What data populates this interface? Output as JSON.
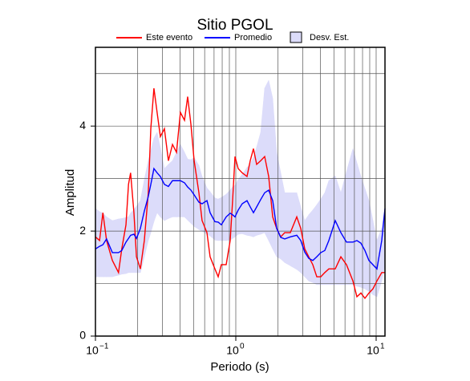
{
  "chart_data": {
    "type": "line",
    "title": "Sitio PGOL",
    "xlabel": "Periodo (s)",
    "ylabel": "Amplitud",
    "xscale": "log",
    "xlim": [
      0.1,
      11.56
    ],
    "ylim": [
      0,
      5.5
    ],
    "xticks": [
      {
        "value": 0.1,
        "label": "10",
        "exponent": "−1"
      },
      {
        "value": 1,
        "label": "10",
        "exponent": "0"
      },
      {
        "value": 10,
        "label": "10",
        "exponent": "1"
      }
    ],
    "yticks": [
      0,
      2,
      4
    ],
    "xminor": [
      0.2,
      0.3,
      0.4,
      0.5,
      0.6,
      0.7,
      0.8,
      0.9,
      2,
      3,
      4,
      5,
      6,
      7,
      8,
      9
    ],
    "yminor": [
      1,
      3,
      5
    ],
    "grid": true,
    "legend": "top",
    "x": [
      0.1,
      0.107,
      0.113,
      0.12,
      0.132,
      0.146,
      0.154,
      0.165,
      0.172,
      0.178,
      0.188,
      0.196,
      0.209,
      0.223,
      0.238,
      0.248,
      0.261,
      0.275,
      0.29,
      0.31,
      0.331,
      0.354,
      0.378,
      0.403,
      0.431,
      0.454,
      0.479,
      0.505,
      0.546,
      0.575,
      0.623,
      0.656,
      0.71,
      0.749,
      0.789,
      0.854,
      0.912,
      0.949,
      0.987,
      1.04,
      1.111,
      1.202,
      1.267,
      1.336,
      1.408,
      1.504,
      1.606,
      1.715,
      1.832,
      1.956,
      2.089,
      2.232,
      2.447,
      2.719,
      2.903,
      3.1,
      3.311,
      3.537,
      3.777,
      4.034,
      4.308,
      4.602,
      5.112,
      5.606,
      6.147,
      6.829,
      7.294,
      7.788,
      8.318,
      8.884,
      9.487,
      10.13,
      10.96,
      11.56
    ],
    "series": [
      {
        "name": "Este evento",
        "color": "#ff0000",
        "values": [
          1.89,
          1.82,
          2.35,
          1.82,
          1.44,
          1.21,
          1.66,
          2.12,
          2.89,
          3.11,
          2.35,
          1.51,
          1.28,
          1.82,
          2.73,
          3.95,
          4.72,
          4.26,
          3.8,
          3.95,
          3.34,
          3.65,
          3.5,
          4.26,
          4.11,
          4.56,
          4.03,
          3.34,
          2.73,
          2.2,
          1.97,
          1.51,
          1.28,
          1.13,
          1.36,
          1.36,
          1.82,
          2.58,
          3.42,
          3.19,
          3.11,
          3.04,
          3.34,
          3.57,
          3.27,
          3.34,
          3.42,
          3.04,
          2.27,
          2.05,
          1.89,
          1.97,
          1.97,
          2.27,
          2.05,
          1.66,
          1.51,
          1.36,
          1.13,
          1.13,
          1.21,
          1.28,
          1.28,
          1.51,
          1.36,
          1.05,
          0.75,
          0.82,
          0.72,
          0.82,
          0.9,
          1.05,
          1.21,
          1.21
        ]
      },
      {
        "name": "Promedio",
        "color": "#0000ff",
        "values": [
          1.66,
          1.71,
          1.74,
          1.85,
          1.59,
          1.59,
          1.63,
          1.79,
          1.86,
          1.92,
          1.94,
          1.86,
          2.05,
          2.38,
          2.66,
          2.89,
          3.19,
          3.11,
          3.04,
          2.89,
          2.85,
          2.96,
          2.96,
          2.96,
          2.92,
          2.84,
          2.78,
          2.69,
          2.55,
          2.52,
          2.58,
          2.35,
          2.18,
          2.17,
          2.12,
          2.27,
          2.34,
          2.31,
          2.27,
          2.4,
          2.52,
          2.58,
          2.46,
          2.35,
          2.46,
          2.6,
          2.73,
          2.78,
          2.58,
          2.05,
          1.88,
          1.85,
          1.89,
          1.92,
          1.82,
          1.6,
          1.48,
          1.44,
          1.51,
          1.59,
          1.63,
          1.82,
          2.2,
          1.97,
          1.79,
          1.79,
          1.82,
          1.77,
          1.63,
          1.44,
          1.36,
          1.28,
          1.82,
          2.43
        ]
      }
    ],
    "band": {
      "name": "Desv. Est.",
      "color": "#dcdcfa",
      "upper": [
        2.43,
        2.37,
        2.34,
        2.27,
        2.2,
        2.23,
        2.24,
        2.26,
        2.27,
        2.34,
        2.41,
        2.47,
        2.58,
        2.98,
        3.34,
        3.53,
        3.77,
        3.88,
        3.59,
        3.19,
        3.27,
        3.34,
        3.5,
        3.65,
        3.5,
        3.37,
        3.36,
        3.4,
        3.25,
        3.04,
        2.82,
        2.75,
        2.63,
        2.61,
        2.64,
        2.7,
        2.78,
        2.84,
        2.87,
        2.98,
        3.08,
        3.21,
        3.28,
        3.4,
        3.6,
        3.88,
        4.72,
        4.87,
        4.53,
        3.5,
        3.11,
        2.73,
        2.73,
        2.73,
        2.46,
        2.2,
        2.31,
        2.4,
        2.5,
        2.61,
        2.73,
        2.96,
        3.05,
        2.73,
        3.13,
        3.57,
        3.3,
        3.04,
        2.81,
        2.58,
        2.2,
        1.82,
        2.06,
        2.43
      ],
      "lower": [
        1.13,
        1.13,
        1.13,
        1.13,
        1.13,
        1.16,
        1.18,
        1.19,
        1.21,
        1.21,
        1.21,
        1.21,
        1.21,
        1.51,
        1.82,
        1.97,
        2.18,
        2.35,
        2.27,
        2.2,
        2.24,
        2.27,
        2.27,
        2.27,
        2.27,
        2.21,
        2.15,
        2.09,
        2.03,
        2.0,
        1.94,
        1.91,
        1.83,
        1.82,
        1.82,
        1.82,
        1.83,
        1.86,
        1.89,
        1.94,
        1.95,
        1.92,
        1.91,
        1.89,
        1.92,
        1.94,
        1.97,
        1.82,
        1.66,
        1.51,
        1.47,
        1.4,
        1.34,
        1.27,
        1.21,
        1.13,
        1.05,
        1.02,
        0.98,
        0.98,
        0.98,
        0.98,
        0.98,
        0.98,
        0.98,
        0.98,
        0.95,
        0.93,
        0.9,
        0.85,
        0.79,
        0.75,
        1.05,
        1.36
      ]
    }
  }
}
